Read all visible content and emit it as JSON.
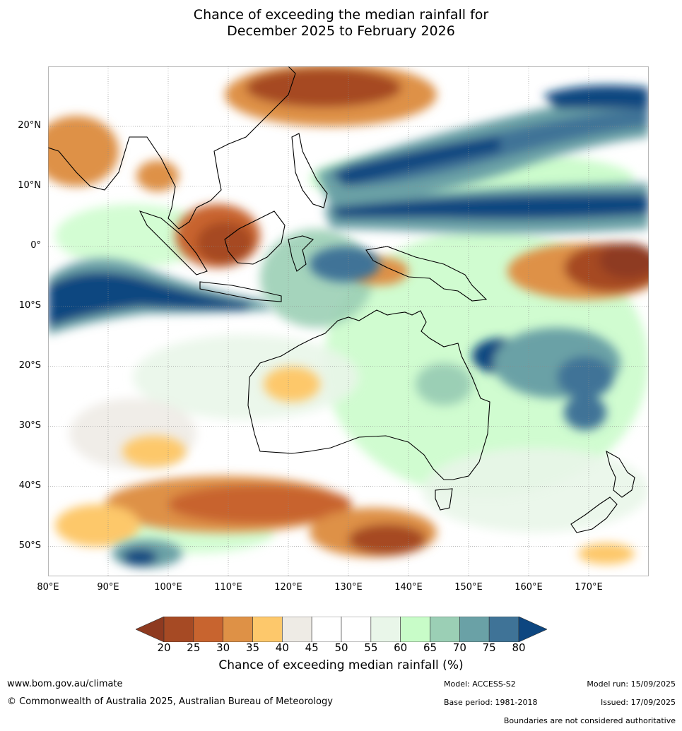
{
  "title": {
    "line1": "Chance of exceeding the median rainfall for",
    "line2": "December 2025 to February 2026"
  },
  "map": {
    "lon_range": [
      80,
      180
    ],
    "lat_range": [
      -55,
      30
    ],
    "lat_ticks": [
      {
        "value": 20,
        "label": "20°N"
      },
      {
        "value": 10,
        "label": "10°N"
      },
      {
        "value": 0,
        "label": "0°"
      },
      {
        "value": -10,
        "label": "10°S"
      },
      {
        "value": -20,
        "label": "20°S"
      },
      {
        "value": -30,
        "label": "30°S"
      },
      {
        "value": -40,
        "label": "40°S"
      },
      {
        "value": -50,
        "label": "50°S"
      }
    ],
    "lon_ticks": [
      {
        "value": 80,
        "label": "80°E"
      },
      {
        "value": 90,
        "label": "90°E"
      },
      {
        "value": 100,
        "label": "100°E"
      },
      {
        "value": 110,
        "label": "110°E"
      },
      {
        "value": 120,
        "label": "120°E"
      },
      {
        "value": 130,
        "label": "130°E"
      },
      {
        "value": 140,
        "label": "140°E"
      },
      {
        "value": 150,
        "label": "150°E"
      },
      {
        "value": 160,
        "label": "160°E"
      },
      {
        "value": 170,
        "label": "170°E"
      }
    ],
    "grid": true
  },
  "colorbar": {
    "title": "Chance of exceeding median rainfall (%)",
    "labels": [
      "20",
      "25",
      "30",
      "35",
      "40",
      "45",
      "50",
      "55",
      "60",
      "65",
      "70",
      "75",
      "80"
    ],
    "low_extend_color": "#8e3a20",
    "high_extend_color": "#0d4680",
    "colors": [
      "#a64a24",
      "#c8642f",
      "#de9146",
      "#fdc86b",
      "#eeebe5",
      "#ffffff",
      "#ffffff",
      "#e9f6e9",
      "#c8fcc8",
      "#9bcfb5",
      "#6aa1a6",
      "#3f7397"
    ]
  },
  "footer": {
    "url": "www.bom.gov.au/climate",
    "copyright": "© Commonwealth of Australia 2025, Australian Bureau of Meteorology",
    "model": "Model: ACCESS-S2",
    "base_period": "Base period: 1981-2018",
    "model_run": "Model run: 15/09/2025",
    "issued": "Issued: 17/09/2025",
    "disclaimer": "Boundaries are not considered authoritative"
  }
}
